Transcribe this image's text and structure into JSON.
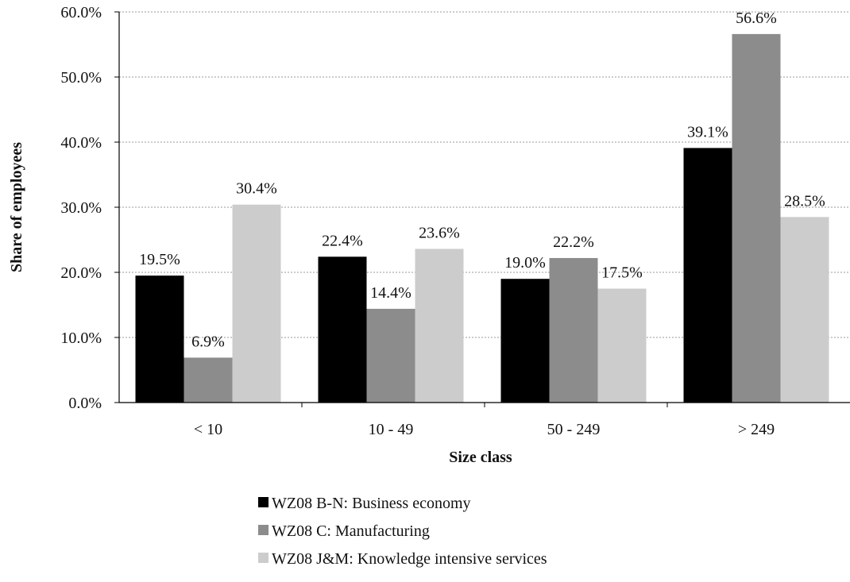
{
  "chart_data": {
    "type": "bar",
    "title": "",
    "xlabel": "Size class",
    "ylabel": "Share of employees",
    "categories": [
      "< 10",
      "10 - 49",
      "50 - 249",
      "> 249"
    ],
    "ylim": [
      0,
      60
    ],
    "yticks": [
      0,
      10,
      20,
      30,
      40,
      50,
      60
    ],
    "ytick_labels": [
      "0.0%",
      "10.0%",
      "20.0%",
      "30.0%",
      "40.0%",
      "50.0%",
      "60.0%"
    ],
    "grid": "horizontal dotted",
    "legend_position": "bottom",
    "series": [
      {
        "name": "WZ08 B-N: Business economy",
        "color": "#000000",
        "values": [
          19.5,
          22.4,
          19.0,
          39.1
        ],
        "labels": [
          "19.5%",
          "22.4%",
          "19.0%",
          "39.1%"
        ]
      },
      {
        "name": "WZ08 C: Manufacturing",
        "color": "#8c8c8c",
        "values": [
          6.9,
          14.4,
          22.2,
          56.6
        ],
        "labels": [
          "6.9%",
          "14.4%",
          "22.2%",
          "56.6%"
        ]
      },
      {
        "name": "WZ08 J&M: Knowledge intensive services",
        "color": "#cccccc",
        "values": [
          30.4,
          23.6,
          17.5,
          28.5
        ],
        "labels": [
          "30.4%",
          "23.6%",
          "17.5%",
          "28.5%"
        ]
      }
    ]
  }
}
